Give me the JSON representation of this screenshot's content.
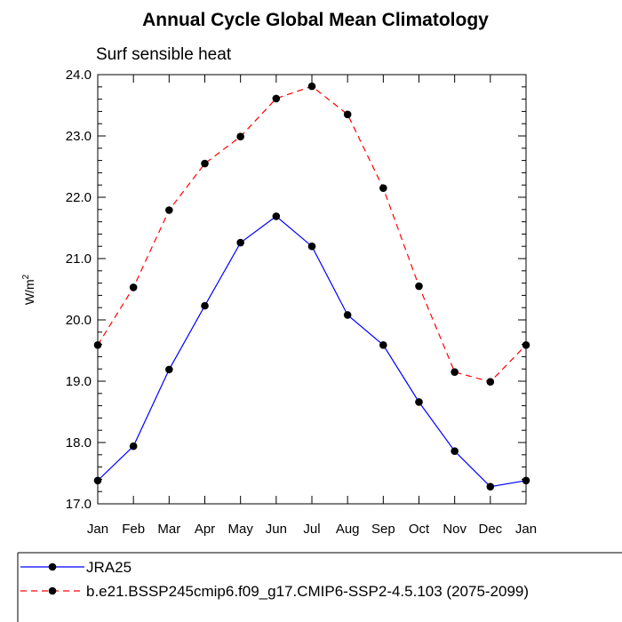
{
  "chart_data": {
    "type": "line",
    "title": "Annual Cycle Global Mean Climatology",
    "subtitle": "Surf sensible heat",
    "ylabel": "W/m",
    "ylabel_sup": "2",
    "categories": [
      "Jan",
      "Feb",
      "Mar",
      "Apr",
      "May",
      "Jun",
      "Jul",
      "Aug",
      "Sep",
      "Oct",
      "Nov",
      "Dec",
      "Jan"
    ],
    "ylim": [
      17.0,
      24.0
    ],
    "yticks": [
      "17.0",
      "18.0",
      "19.0",
      "20.0",
      "21.0",
      "22.0",
      "23.0",
      "24.0"
    ],
    "series": [
      {
        "name": "JRA25",
        "color": "#0000ff",
        "dash": "solid",
        "values": [
          17.38,
          17.94,
          19.19,
          20.23,
          21.26,
          21.69,
          21.2,
          20.08,
          19.59,
          18.66,
          17.86,
          17.28,
          17.38
        ]
      },
      {
        "name": "b.e21.BSSP245cmip6.f09_g17.CMIP6-SSP2-4.5.103 (2075-2099)",
        "color": "#ff0000",
        "dash": "dashed",
        "values": [
          19.59,
          20.53,
          21.79,
          22.55,
          22.99,
          23.61,
          23.81,
          23.35,
          22.15,
          20.55,
          19.15,
          18.99,
          19.59
        ]
      }
    ]
  }
}
